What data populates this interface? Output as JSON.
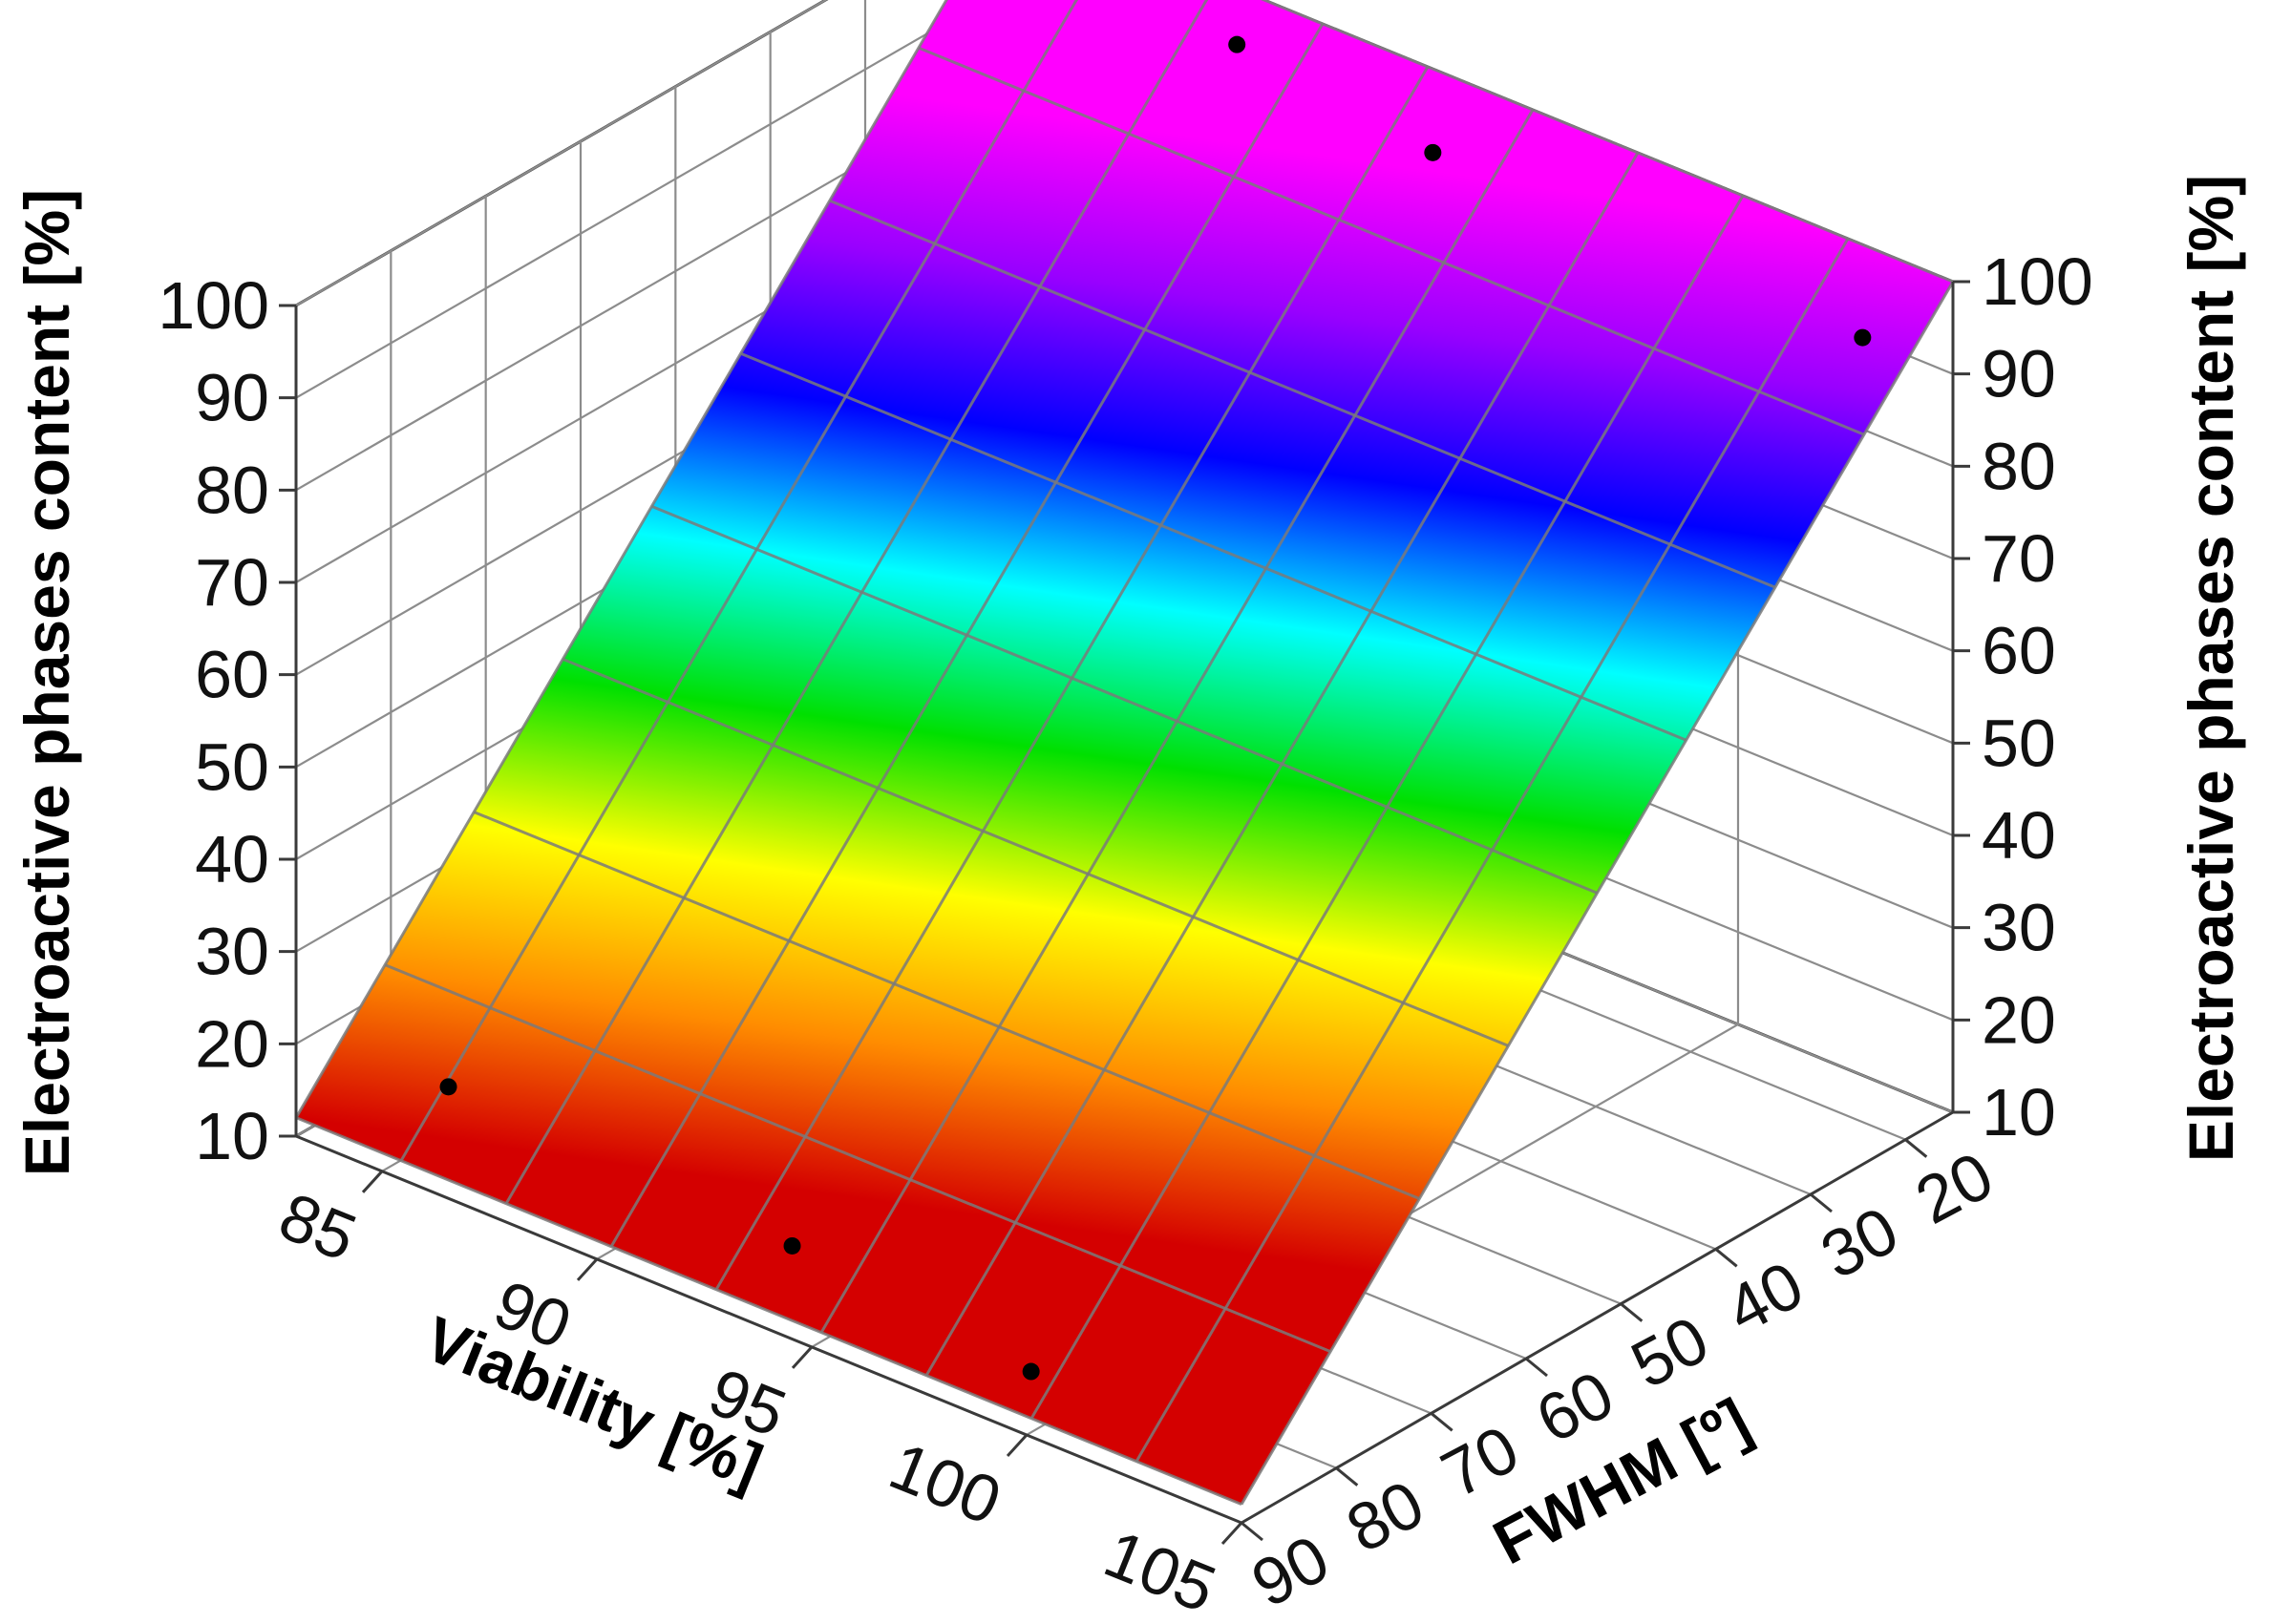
{
  "chart_data": {
    "type": "surface3d",
    "axes": {
      "viability": {
        "label": "Viability [%]",
        "range": [
          83,
          105
        ],
        "ticks": [
          "85",
          "90",
          "95",
          "100",
          "105"
        ]
      },
      "fwhm": {
        "label": "FWHM [º]",
        "range": [
          15,
          90
        ],
        "ticks": [
          "20",
          "30",
          "40",
          "50",
          "60",
          "70",
          "80",
          "90"
        ]
      },
      "z_left": {
        "label": "Electroactive phases content [%]",
        "range": [
          10,
          100
        ],
        "ticks": [
          "10",
          "20",
          "30",
          "40",
          "50",
          "60",
          "70",
          "80",
          "90",
          "100"
        ]
      },
      "z_right": {
        "label": "Electroactive phases content [%]",
        "range": [
          10,
          100
        ],
        "ticks": [
          "10",
          "20",
          "30",
          "40",
          "50",
          "60",
          "70",
          "80",
          "90",
          "100"
        ]
      }
    },
    "colormap": [
      "#d40000",
      "#ff8c00",
      "#ffff00",
      "#00e000",
      "#00ffff",
      "#0000ff",
      "#9900ff",
      "#ff00ff"
    ],
    "surface": {
      "z_low_fwhm_edge": 100,
      "z_high_fwhm_edge": 12
    },
    "points": [
      {
        "viability": 85,
        "fwhm": 83,
        "z": 15
      },
      {
        "viability": 93,
        "fwhm": 83,
        "z": 13
      },
      {
        "viability": 99,
        "fwhm": 85,
        "z": 12
      },
      {
        "viability": 89,
        "fwhm": 18,
        "z": 97
      },
      {
        "viability": 94,
        "fwhm": 20,
        "z": 96
      },
      {
        "viability": 104,
        "fwhm": 20,
        "z": 95
      }
    ],
    "grid": true,
    "legend": "none"
  }
}
